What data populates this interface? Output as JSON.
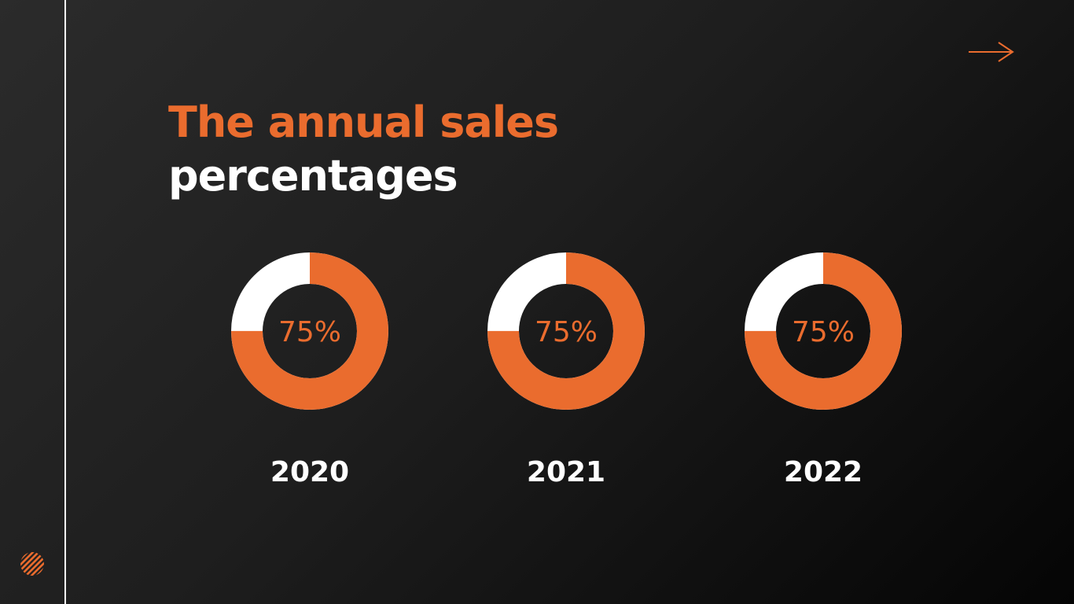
{
  "title": {
    "line1": "The annual sales",
    "line2": "percentages"
  },
  "colors": {
    "accent": "#ea6c2e",
    "remainder": "#ffffff",
    "background": "#1e1e1e"
  },
  "icons": {
    "next": "arrow-right-icon",
    "logo": "striped-circle-logo"
  },
  "chart_data": {
    "type": "pie",
    "variant": "donut",
    "charts": [
      {
        "year": "2020",
        "value": 75,
        "label": "75%"
      },
      {
        "year": "2021",
        "value": 75,
        "label": "75%"
      },
      {
        "year": "2022",
        "value": 75,
        "label": "75%"
      }
    ]
  }
}
